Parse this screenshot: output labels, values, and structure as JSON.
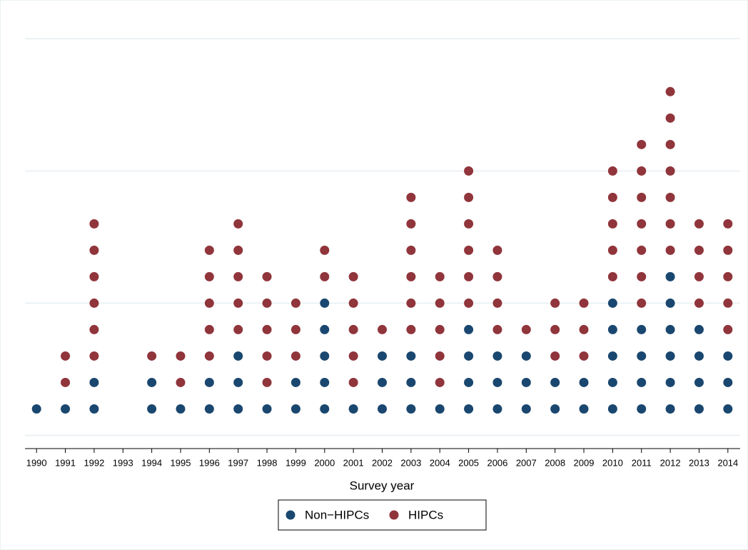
{
  "chart_data": {
    "type": "dot-stack",
    "x_label": "Survey year",
    "categories": [
      "1990",
      "1991",
      "1992",
      "1993",
      "1994",
      "1995",
      "1996",
      "1997",
      "1998",
      "1999",
      "2000",
      "2001",
      "2002",
      "2003",
      "2004",
      "2005",
      "2006",
      "2007",
      "2008",
      "2009",
      "2010",
      "2011",
      "2012",
      "2013",
      "2014"
    ],
    "series": [
      {
        "name": "Non−HIPCs",
        "color": "#1a476f",
        "values": [
          1,
          1,
          2,
          0,
          2,
          1,
          2,
          3,
          1,
          2,
          5,
          1,
          3,
          3,
          1,
          4,
          3,
          3,
          2,
          2,
          5,
          4,
          6,
          4,
          3
        ]
      },
      {
        "name": "HIPCs",
        "color": "#90353b",
        "values": [
          0,
          2,
          6,
          0,
          1,
          2,
          5,
          5,
          5,
          3,
          2,
          5,
          1,
          6,
          5,
          6,
          4,
          1,
          3,
          3,
          5,
          7,
          7,
          4,
          5
        ]
      }
    ],
    "ylim": [
      -0.5,
      16.25
    ],
    "ygrid": [
      0,
      5,
      10,
      15
    ],
    "legend": "bottom"
  }
}
